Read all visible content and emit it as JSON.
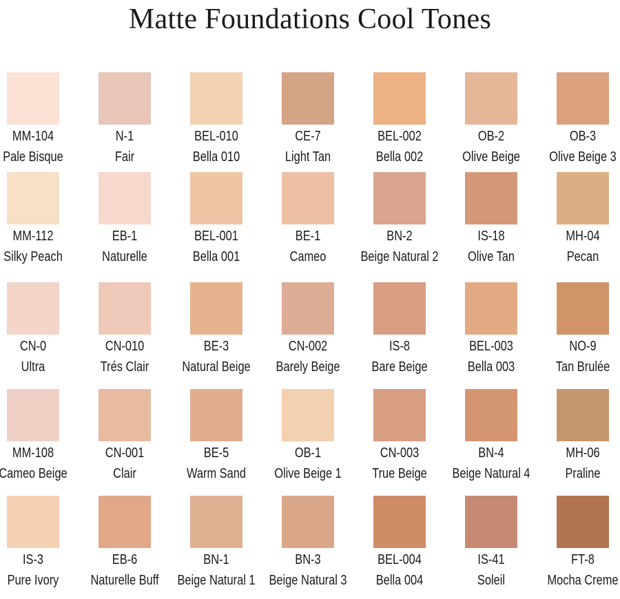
{
  "title": "Matte Foundations Cool Tones",
  "rows": [
    [
      {
        "code": "MM-104",
        "name": "Pale Bisque",
        "color": "#FCE2D4"
      },
      {
        "code": "N-1",
        "name": "Fair",
        "color": "#E8C6B8"
      },
      {
        "code": "BEL-010",
        "name": "Bella 010",
        "color": "#F2D2B2"
      },
      {
        "code": "CE-7",
        "name": "Light Tan",
        "color": "#D4A486"
      },
      {
        "code": "BEL-002",
        "name": "Bella 002",
        "color": "#ECB284"
      },
      {
        "code": "OB-2",
        "name": "Olive Beige",
        "color": "#E6B698"
      },
      {
        "code": "OB-3",
        "name": "Olive Beige 3",
        "color": "#DCA27E"
      }
    ],
    [
      {
        "code": "MM-112",
        "name": "Silky Peach",
        "color": "#F8DFC8"
      },
      {
        "code": "EB-1",
        "name": "Naturelle",
        "color": "#F6D8CC"
      },
      {
        "code": "BEL-001",
        "name": "Bella 001",
        "color": "#EEC4A4"
      },
      {
        "code": "BE-1",
        "name": "Cameo",
        "color": "#EDC0A6"
      },
      {
        "code": "BN-2",
        "name": "Beige Natural 2",
        "color": "#D8A48E"
      },
      {
        "code": "IS-18",
        "name": "Olive Tan",
        "color": "#D49878"
      },
      {
        "code": "MH-04",
        "name": "Pecan",
        "color": "#DDAE84"
      }
    ],
    [
      {
        "code": "CN-0",
        "name": "Ultra",
        "color": "#F2D4C8"
      },
      {
        "code": "CN-010",
        "name": "Trés Clair",
        "color": "#F0CAB8"
      },
      {
        "code": "BE-3",
        "name": "Natural Beige",
        "color": "#E6B28E"
      },
      {
        "code": "CN-002",
        "name": "Barely Beige",
        "color": "#DDAC94"
      },
      {
        "code": "IS-8",
        "name": "Bare Beige",
        "color": "#D69E82"
      },
      {
        "code": "BEL-003",
        "name": "Bella 003",
        "color": "#E2AA82"
      },
      {
        "code": "NO-9",
        "name": "Tan Brulée",
        "color": "#D09468"
      }
    ],
    [
      {
        "code": "MM-108",
        "name": "Cameo Beige",
        "color": "#EED0C4"
      },
      {
        "code": "CN-001",
        "name": "Clair",
        "color": "#E8BAA0"
      },
      {
        "code": "BE-5",
        "name": "Warm Sand",
        "color": "#E0AE8E"
      },
      {
        "code": "OB-1",
        "name": "Olive Beige 1",
        "color": "#F2D0B0"
      },
      {
        "code": "CN-003",
        "name": "True Beige",
        "color": "#D89E84"
      },
      {
        "code": "BN-4",
        "name": "Beige Natural 4",
        "color": "#D49670"
      },
      {
        "code": "MH-06",
        "name": "Praline",
        "color": "#C6966C"
      }
    ],
    [
      {
        "code": "IS-3",
        "name": "Pure Ivory",
        "color": "#F6D0B2"
      },
      {
        "code": "EB-6",
        "name": "Naturelle Buff",
        "color": "#E0A888"
      },
      {
        "code": "BN-1",
        "name": "Beige Natural 1",
        "color": "#DEB092"
      },
      {
        "code": "BN-3",
        "name": "Beige Natural 3",
        "color": "#DAA68A"
      },
      {
        "code": "BEL-004",
        "name": "Bella 004",
        "color": "#CE8C66"
      },
      {
        "code": "IS-41",
        "name": "Soleil",
        "color": "#C68A74"
      },
      {
        "code": "FT-8",
        "name": "Mocha Creme",
        "color": "#B37450"
      }
    ]
  ]
}
